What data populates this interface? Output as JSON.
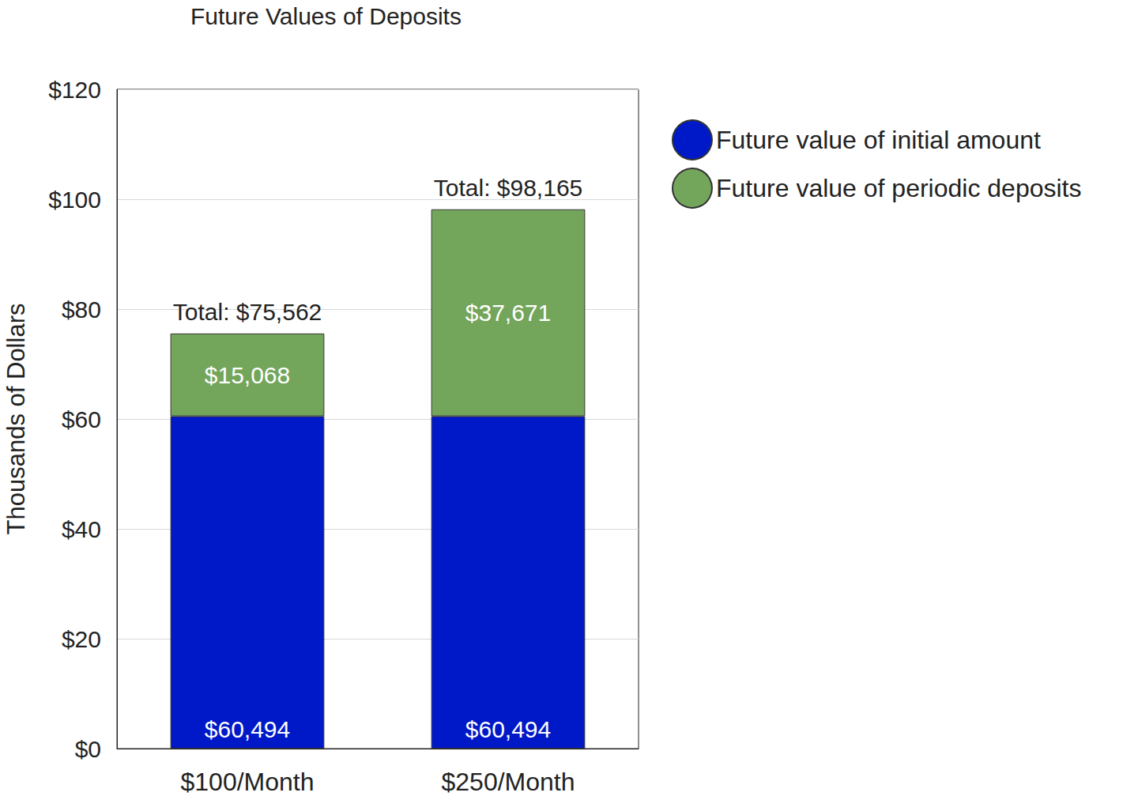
{
  "chart_data": {
    "type": "bar",
    "title": "Future Values of Deposits",
    "y_label": "Thousands of Dollars",
    "categories": [
      "$100/Month",
      "$250/Month"
    ],
    "series": [
      {
        "name": "Future value of initial amount",
        "color": "#0019c8",
        "values": [
          60.494,
          60.494
        ],
        "value_labels": [
          "$60,494",
          "$60,494"
        ]
      },
      {
        "name": "Future value of periodic deposits",
        "color": "#73a55b",
        "values": [
          15.068,
          37.671
        ],
        "value_labels": [
          "$15,068",
          "$37,671"
        ]
      }
    ],
    "totals": [
      {
        "value": 75.562,
        "label": "Total: $75,562"
      },
      {
        "value": 98.165,
        "label": "Total: $98,165"
      }
    ],
    "ylim": [
      0,
      120
    ],
    "yticks": [
      {
        "value": 0,
        "label": "$0"
      },
      {
        "value": 20,
        "label": "$20"
      },
      {
        "value": 40,
        "label": "$40"
      },
      {
        "value": 60,
        "label": "$60"
      },
      {
        "value": 80,
        "label": "$80"
      },
      {
        "value": 100,
        "label": "$100"
      },
      {
        "value": 120,
        "label": "$120"
      }
    ],
    "stacked": true,
    "data_labels": true,
    "grid": true,
    "legend": "right"
  }
}
